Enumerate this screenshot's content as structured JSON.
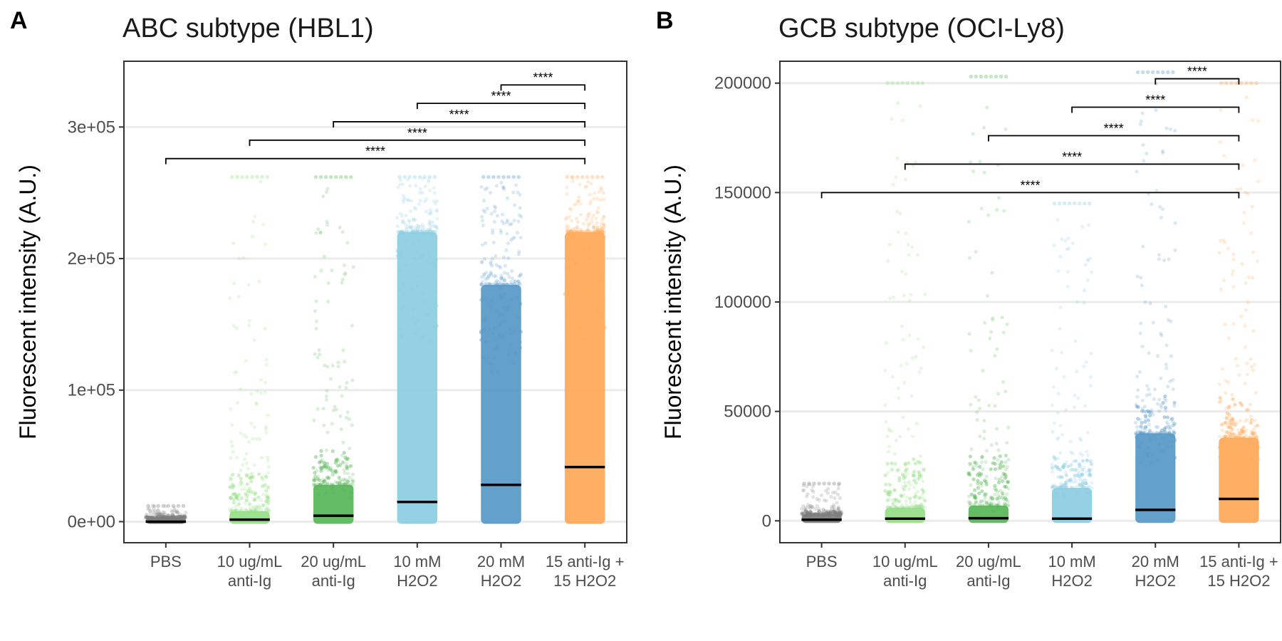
{
  "chart_data": [
    {
      "panel": "A",
      "type": "scatter",
      "title": "ABC subtype (HBL1)",
      "xlabel": "",
      "ylabel": "Fluorescent intensity (A.U.)",
      "ylim": [
        -16000,
        350000
      ],
      "yticks": [
        0,
        100000,
        200000,
        300000
      ],
      "yticklabels": [
        "0e+00",
        "1e+05",
        "2e+05",
        "3e+05"
      ],
      "grid": "horizontal",
      "categories": [
        "PBS",
        "10 ug/mL anti-Ig",
        "20 ug/mL anti-Ig",
        "10 mM H2O2",
        "20 mM H2O2",
        "15 anti-Ig + 15 H2O2"
      ],
      "category_labels": [
        [
          "PBS"
        ],
        [
          "10 ug/mL",
          "anti-Ig"
        ],
        [
          "20 ug/mL",
          "anti-Ig"
        ],
        [
          "10 mM",
          "H2O2"
        ],
        [
          "20 mM",
          "H2O2"
        ],
        [
          "15 anti-Ig +",
          "15 H2O2"
        ]
      ],
      "colors": [
        "#7f7f7f",
        "#98df8a",
        "#5cb85c",
        "#8ecfe3",
        "#5b9cc9",
        "#ffab5c"
      ],
      "medians": [
        0,
        1500,
        4500,
        15000,
        28000,
        41500
      ],
      "dense_top": [
        3000,
        8000,
        28000,
        220000,
        180000,
        220000
      ],
      "max_values": [
        12000,
        262000,
        262000,
        262000,
        262000,
        262000
      ],
      "comparisons": [
        {
          "from": 4,
          "to": 5,
          "y": 332000,
          "label": "****"
        },
        {
          "from": 3,
          "to": 5,
          "y": 318000,
          "label": "****"
        },
        {
          "from": 2,
          "to": 5,
          "y": 304000,
          "label": "****"
        },
        {
          "from": 1,
          "to": 5,
          "y": 290000,
          "label": "****"
        },
        {
          "from": 0,
          "to": 5,
          "y": 276000,
          "label": "****"
        }
      ]
    },
    {
      "panel": "B",
      "type": "scatter",
      "title": "GCB subtype (OCI-Ly8)",
      "xlabel": "",
      "ylabel": "Fluorescent intensity (A.U.)",
      "ylim": [
        -10000,
        210000
      ],
      "yticks": [
        0,
        50000,
        100000,
        150000,
        200000
      ],
      "yticklabels": [
        "0",
        "50000",
        "100000",
        "150000",
        "200000"
      ],
      "grid": "horizontal",
      "categories": [
        "PBS",
        "10 ug/mL anti-Ig",
        "20 ug/mL anti-Ig",
        "10 mM H2O2",
        "20 mM H2O2",
        "15 anti-Ig + 15 H2O2"
      ],
      "category_labels": [
        [
          "PBS"
        ],
        [
          "10 ug/mL",
          "anti-Ig"
        ],
        [
          "20 ug/mL",
          "anti-Ig"
        ],
        [
          "10 mM",
          "H2O2"
        ],
        [
          "20 mM",
          "H2O2"
        ],
        [
          "15 anti-Ig +",
          "15 H2O2"
        ]
      ],
      "colors": [
        "#7f7f7f",
        "#98df8a",
        "#5cb85c",
        "#8ecfe3",
        "#5b9cc9",
        "#ffab5c"
      ],
      "medians": [
        500,
        1000,
        1200,
        1000,
        5000,
        10000
      ],
      "dense_top": [
        3000,
        6000,
        7000,
        15000,
        40000,
        38000
      ],
      "max_values": [
        17000,
        200000,
        203000,
        145000,
        205000,
        200000
      ],
      "comparisons": [
        {
          "from": 4,
          "to": 5,
          "y": 202000,
          "label": "****"
        },
        {
          "from": 3,
          "to": 5,
          "y": 189000,
          "label": "****"
        },
        {
          "from": 2,
          "to": 5,
          "y": 176000,
          "label": "****"
        },
        {
          "from": 1,
          "to": 5,
          "y": 163000,
          "label": "****"
        },
        {
          "from": 0,
          "to": 5,
          "y": 150000,
          "label": "****"
        }
      ]
    }
  ]
}
